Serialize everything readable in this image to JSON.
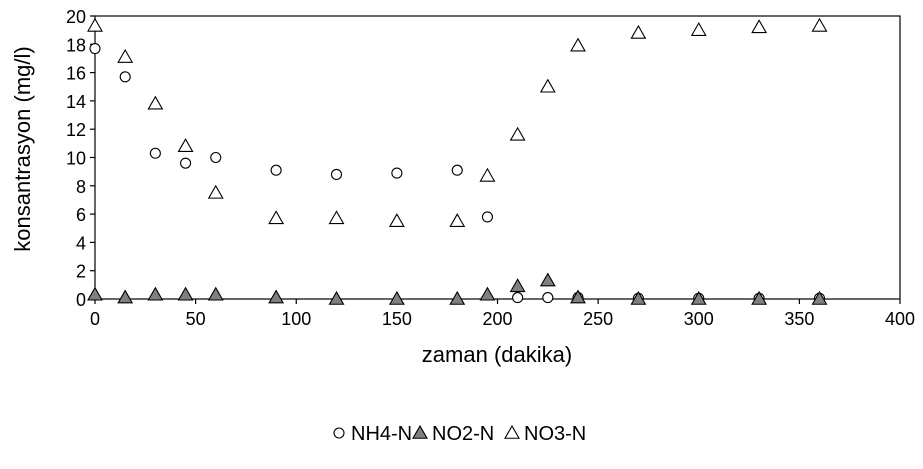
{
  "chart_data": {
    "type": "scatter",
    "title": "",
    "xlabel": "zaman (dakika)",
    "ylabel": "konsantrasyon (mg/l)",
    "xlim": [
      0,
      400
    ],
    "ylim": [
      0,
      20
    ],
    "x_ticks": [
      0,
      50,
      100,
      150,
      200,
      250,
      300,
      350,
      400
    ],
    "y_ticks": [
      0,
      2,
      4,
      6,
      8,
      10,
      12,
      14,
      16,
      18,
      20
    ],
    "grid": false,
    "legend_position": "bottom",
    "series": [
      {
        "name": "NH4-N",
        "marker": "circle-open",
        "color": "#ffffff",
        "points": [
          [
            0,
            17.7
          ],
          [
            15,
            15.7
          ],
          [
            30,
            10.3
          ],
          [
            45,
            9.6
          ],
          [
            60,
            10.0
          ],
          [
            90,
            9.1
          ],
          [
            120,
            8.8
          ],
          [
            150,
            8.9
          ],
          [
            180,
            9.1
          ],
          [
            195,
            5.8
          ],
          [
            210,
            0.1
          ],
          [
            225,
            0.1
          ],
          [
            240,
            0.1
          ],
          [
            270,
            0.05
          ],
          [
            300,
            0.05
          ],
          [
            330,
            0.05
          ],
          [
            360,
            0.05
          ]
        ]
      },
      {
        "name": "NO2-N",
        "marker": "triangle-filled",
        "color": "#808080",
        "points": [
          [
            0,
            0.3
          ],
          [
            15,
            0.1
          ],
          [
            30,
            0.3
          ],
          [
            45,
            0.3
          ],
          [
            60,
            0.3
          ],
          [
            90,
            0.1
          ],
          [
            120,
            0.0
          ],
          [
            150,
            0.0
          ],
          [
            180,
            0.0
          ],
          [
            195,
            0.3
          ],
          [
            210,
            0.9
          ],
          [
            225,
            1.3
          ],
          [
            240,
            0.1
          ],
          [
            270,
            0.0
          ],
          [
            300,
            0.0
          ],
          [
            330,
            0.0
          ],
          [
            360,
            0.0
          ]
        ]
      },
      {
        "name": "NO3-N",
        "marker": "triangle-open",
        "color": "#ffffff",
        "points": [
          [
            0,
            19.3
          ],
          [
            15,
            17.1
          ],
          [
            30,
            13.8
          ],
          [
            45,
            10.8
          ],
          [
            60,
            7.5
          ],
          [
            90,
            5.7
          ],
          [
            120,
            5.7
          ],
          [
            150,
            5.5
          ],
          [
            180,
            5.5
          ],
          [
            195,
            8.7
          ],
          [
            210,
            11.6
          ],
          [
            225,
            15.0
          ],
          [
            240,
            17.9
          ],
          [
            270,
            18.8
          ],
          [
            300,
            19.0
          ],
          [
            330,
            19.2
          ],
          [
            360,
            19.3
          ]
        ]
      }
    ]
  }
}
